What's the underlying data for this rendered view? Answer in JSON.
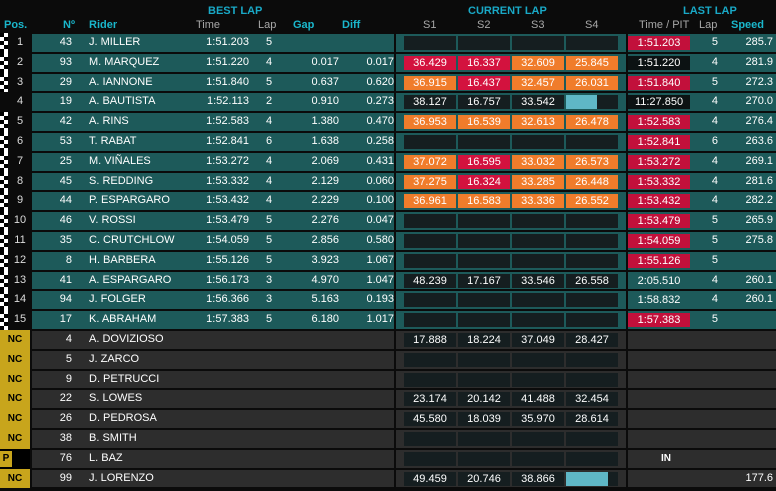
{
  "headers": {
    "best_lap": "BEST LAP",
    "current_lap": "CURRENT LAP",
    "last_lap": "LAST LAP",
    "pos": "Pos.",
    "no": "Nº",
    "rider": "Rider",
    "time": "Time",
    "lap": "Lap",
    "gap": "Gap",
    "diff": "Diff",
    "s1": "S1",
    "s2": "S2",
    "s3": "S3",
    "s4": "S4",
    "time_pit": "Time / PIT",
    "last_lap_col": "Lap",
    "speed": "Speed"
  },
  "colors": {
    "teal_row": "#1d5a5a",
    "gray_row": "#2d2d2d",
    "orange": "#f07c2b",
    "red": "#d3123e",
    "nc_badge": "#c8a51c",
    "header_accent": "#19a9c7"
  },
  "rows": [
    {
      "pos": "1",
      "flag": true,
      "status": "ok",
      "num": "43",
      "rider": "J. MILLER",
      "best": "1:51.203",
      "lap": "5",
      "gap": "",
      "diff": "",
      "s": [
        "",
        "",
        "",
        ""
      ],
      "sc": [
        "dark",
        "dark",
        "dark",
        "dark"
      ],
      "bar": 0,
      "last": "1:51.203",
      "lastc": "red",
      "lastlap": "5",
      "speed": "285.7"
    },
    {
      "pos": "2",
      "flag": true,
      "status": "ok",
      "num": "93",
      "rider": "M. MARQUEZ",
      "best": "1:51.220",
      "lap": "4",
      "gap": "0.017",
      "diff": "0.017",
      "s": [
        "36.429",
        "16.337",
        "32.609",
        "25.845"
      ],
      "sc": [
        "red",
        "red",
        "orange",
        "orange"
      ],
      "bar": 0,
      "last": "1:51.220",
      "lastc": "dark",
      "lastlap": "4",
      "speed": "281.9"
    },
    {
      "pos": "3",
      "flag": true,
      "status": "ok",
      "num": "29",
      "rider": "A. IANNONE",
      "best": "1:51.840",
      "lap": "5",
      "gap": "0.637",
      "diff": "0.620",
      "s": [
        "36.915",
        "16.437",
        "32.457",
        "26.031"
      ],
      "sc": [
        "orange",
        "red",
        "orange",
        "orange"
      ],
      "bar": 0,
      "last": "1:51.840",
      "lastc": "red",
      "lastlap": "5",
      "speed": "272.3"
    },
    {
      "pos": "4",
      "flag": false,
      "status": "ok",
      "num": "19",
      "rider": "A. BAUTISTA",
      "best": "1:52.113",
      "lap": "2",
      "gap": "0.910",
      "diff": "0.273",
      "s": [
        "38.127",
        "16.757",
        "33.542",
        ""
      ],
      "sc": [
        "dark",
        "dark",
        "dark",
        "bar"
      ],
      "bar": 0.6,
      "last": "11:27.850",
      "lastc": "dark",
      "lastlap": "4",
      "speed": "270.0"
    },
    {
      "pos": "5",
      "flag": true,
      "status": "ok",
      "num": "42",
      "rider": "A. RINS",
      "best": "1:52.583",
      "lap": "4",
      "gap": "1.380",
      "diff": "0.470",
      "s": [
        "36.953",
        "16.539",
        "32.613",
        "26.478"
      ],
      "sc": [
        "orange",
        "orange",
        "orange",
        "orange"
      ],
      "bar": 0,
      "last": "1:52.583",
      "lastc": "red",
      "lastlap": "4",
      "speed": "276.4"
    },
    {
      "pos": "6",
      "flag": true,
      "status": "ok",
      "num": "53",
      "rider": "T. RABAT",
      "best": "1:52.841",
      "lap": "6",
      "gap": "1.638",
      "diff": "0.258",
      "s": [
        "",
        "",
        "",
        ""
      ],
      "sc": [
        "dark",
        "dark",
        "dark",
        "dark"
      ],
      "bar": 0,
      "last": "1:52.841",
      "lastc": "red",
      "lastlap": "6",
      "speed": "263.6"
    },
    {
      "pos": "7",
      "flag": true,
      "status": "ok",
      "num": "25",
      "rider": "M. VIÑALES",
      "best": "1:53.272",
      "lap": "4",
      "gap": "2.069",
      "diff": "0.431",
      "s": [
        "37.072",
        "16.595",
        "33.032",
        "26.573"
      ],
      "sc": [
        "orange",
        "red",
        "orange",
        "orange"
      ],
      "bar": 0,
      "last": "1:53.272",
      "lastc": "red",
      "lastlap": "4",
      "speed": "269.1"
    },
    {
      "pos": "8",
      "flag": true,
      "status": "ok",
      "num": "45",
      "rider": "S. REDDING",
      "best": "1:53.332",
      "lap": "4",
      "gap": "2.129",
      "diff": "0.060",
      "s": [
        "37.275",
        "16.324",
        "33.285",
        "26.448"
      ],
      "sc": [
        "orange",
        "red",
        "orange",
        "orange"
      ],
      "bar": 0,
      "last": "1:53.332",
      "lastc": "red",
      "lastlap": "4",
      "speed": "281.6"
    },
    {
      "pos": "9",
      "flag": true,
      "status": "ok",
      "num": "44",
      "rider": "P. ESPARGARO",
      "best": "1:53.432",
      "lap": "4",
      "gap": "2.229",
      "diff": "0.100",
      "s": [
        "36.961",
        "16.583",
        "33.336",
        "26.552"
      ],
      "sc": [
        "orange",
        "orange",
        "orange",
        "orange"
      ],
      "bar": 0,
      "last": "1:53.432",
      "lastc": "red",
      "lastlap": "4",
      "speed": "282.2"
    },
    {
      "pos": "10",
      "flag": true,
      "status": "ok",
      "num": "46",
      "rider": "V. ROSSI",
      "best": "1:53.479",
      "lap": "5",
      "gap": "2.276",
      "diff": "0.047",
      "s": [
        "",
        "",
        "",
        ""
      ],
      "sc": [
        "dark",
        "dark",
        "dark",
        "dark"
      ],
      "bar": 0,
      "last": "1:53.479",
      "lastc": "red",
      "lastlap": "5",
      "speed": "265.9"
    },
    {
      "pos": "11",
      "flag": true,
      "status": "ok",
      "num": "35",
      "rider": "C. CRUTCHLOW",
      "best": "1:54.059",
      "lap": "5",
      "gap": "2.856",
      "diff": "0.580",
      "s": [
        "",
        "",
        "",
        ""
      ],
      "sc": [
        "dark",
        "dark",
        "dark",
        "dark"
      ],
      "bar": 0,
      "last": "1:54.059",
      "lastc": "red",
      "lastlap": "5",
      "speed": "275.8"
    },
    {
      "pos": "12",
      "flag": true,
      "status": "ok",
      "num": "8",
      "rider": "H. BARBERA",
      "best": "1:55.126",
      "lap": "5",
      "gap": "3.923",
      "diff": "1.067",
      "s": [
        "",
        "",
        "",
        ""
      ],
      "sc": [
        "dark",
        "dark",
        "dark",
        "dark"
      ],
      "bar": 0,
      "last": "1:55.126",
      "lastc": "red",
      "lastlap": "5",
      "speed": ""
    },
    {
      "pos": "13",
      "flag": true,
      "status": "ok",
      "num": "41",
      "rider": "A. ESPARGARO",
      "best": "1:56.173",
      "lap": "3",
      "gap": "4.970",
      "diff": "1.047",
      "s": [
        "48.239",
        "17.167",
        "33.546",
        "26.558"
      ],
      "sc": [
        "dark",
        "dark",
        "dark",
        "dark"
      ],
      "bar": 0,
      "last": "2:05.510",
      "lastc": "none",
      "lastlap": "4",
      "speed": "260.1"
    },
    {
      "pos": "14",
      "flag": true,
      "status": "ok",
      "num": "94",
      "rider": "J. FOLGER",
      "best": "1:56.366",
      "lap": "3",
      "gap": "5.163",
      "diff": "0.193",
      "s": [
        "",
        "",
        "",
        ""
      ],
      "sc": [
        "dark",
        "dark",
        "dark",
        "dark"
      ],
      "bar": 0,
      "last": "1:58.832",
      "lastc": "none",
      "lastlap": "4",
      "speed": "260.1"
    },
    {
      "pos": "15",
      "flag": true,
      "status": "ok",
      "num": "17",
      "rider": "K. ABRAHAM",
      "best": "1:57.383",
      "lap": "5",
      "gap": "6.180",
      "diff": "1.017",
      "s": [
        "",
        "",
        "",
        ""
      ],
      "sc": [
        "dark",
        "dark",
        "dark",
        "dark"
      ],
      "bar": 0,
      "last": "1:57.383",
      "lastc": "red",
      "lastlap": "5",
      "speed": ""
    },
    {
      "pos": "NC",
      "flag": false,
      "status": "nc",
      "num": "4",
      "rider": "A. DOVIZIOSO",
      "best": "",
      "lap": "",
      "gap": "",
      "diff": "",
      "s": [
        "17.888",
        "18.224",
        "37.049",
        "28.427"
      ],
      "sc": [
        "dark",
        "dark",
        "dark",
        "dark"
      ],
      "bar": 0,
      "last": "",
      "lastc": "none",
      "lastlap": "",
      "speed": ""
    },
    {
      "pos": "NC",
      "flag": false,
      "status": "nc",
      "num": "5",
      "rider": "J. ZARCO",
      "best": "",
      "lap": "",
      "gap": "",
      "diff": "",
      "s": [
        "",
        "",
        "",
        ""
      ],
      "sc": [
        "dark",
        "dark",
        "dark",
        "dark"
      ],
      "bar": 0,
      "last": "",
      "lastc": "none",
      "lastlap": "",
      "speed": ""
    },
    {
      "pos": "NC",
      "flag": false,
      "status": "nc",
      "num": "9",
      "rider": "D. PETRUCCI",
      "best": "",
      "lap": "",
      "gap": "",
      "diff": "",
      "s": [
        "",
        "",
        "",
        ""
      ],
      "sc": [
        "dark",
        "dark",
        "dark",
        "dark"
      ],
      "bar": 0,
      "last": "",
      "lastc": "none",
      "lastlap": "",
      "speed": ""
    },
    {
      "pos": "NC",
      "flag": false,
      "status": "nc",
      "num": "22",
      "rider": "S. LOWES",
      "best": "",
      "lap": "",
      "gap": "",
      "diff": "",
      "s": [
        "23.174",
        "20.142",
        "41.488",
        "32.454"
      ],
      "sc": [
        "dark",
        "dark",
        "dark",
        "dark"
      ],
      "bar": 0,
      "last": "",
      "lastc": "none",
      "lastlap": "",
      "speed": ""
    },
    {
      "pos": "NC",
      "flag": false,
      "status": "nc",
      "num": "26",
      "rider": "D. PEDROSA",
      "best": "",
      "lap": "",
      "gap": "",
      "diff": "",
      "s": [
        "45.580",
        "18.039",
        "35.970",
        "28.614"
      ],
      "sc": [
        "dark",
        "dark",
        "dark",
        "dark"
      ],
      "bar": 0,
      "last": "",
      "lastc": "none",
      "lastlap": "",
      "speed": ""
    },
    {
      "pos": "NC",
      "flag": false,
      "status": "nc",
      "num": "38",
      "rider": "B. SMITH",
      "best": "",
      "lap": "",
      "gap": "",
      "diff": "",
      "s": [
        "",
        "",
        "",
        ""
      ],
      "sc": [
        "dark",
        "dark",
        "dark",
        "dark"
      ],
      "bar": 0,
      "last": "",
      "lastc": "none",
      "lastlap": "",
      "speed": ""
    },
    {
      "pos": "P",
      "flag": false,
      "status": "pit",
      "num": "76",
      "rider": "L. BAZ",
      "best": "",
      "lap": "",
      "gap": "",
      "diff": "",
      "s": [
        "",
        "",
        "",
        ""
      ],
      "sc": [
        "dark",
        "dark",
        "dark",
        "dark"
      ],
      "bar": 0,
      "last": "IN",
      "lastc": "in",
      "lastlap": "",
      "speed": ""
    },
    {
      "pos": "NC",
      "flag": false,
      "status": "nc",
      "num": "99",
      "rider": "J. LORENZO",
      "best": "",
      "lap": "",
      "gap": "",
      "diff": "",
      "s": [
        "49.459",
        "20.746",
        "38.866",
        ""
      ],
      "sc": [
        "dark",
        "dark",
        "dark",
        "bar"
      ],
      "bar": 0.8,
      "last": "",
      "lastc": "none",
      "lastlap": "",
      "speed": "177.6"
    }
  ]
}
